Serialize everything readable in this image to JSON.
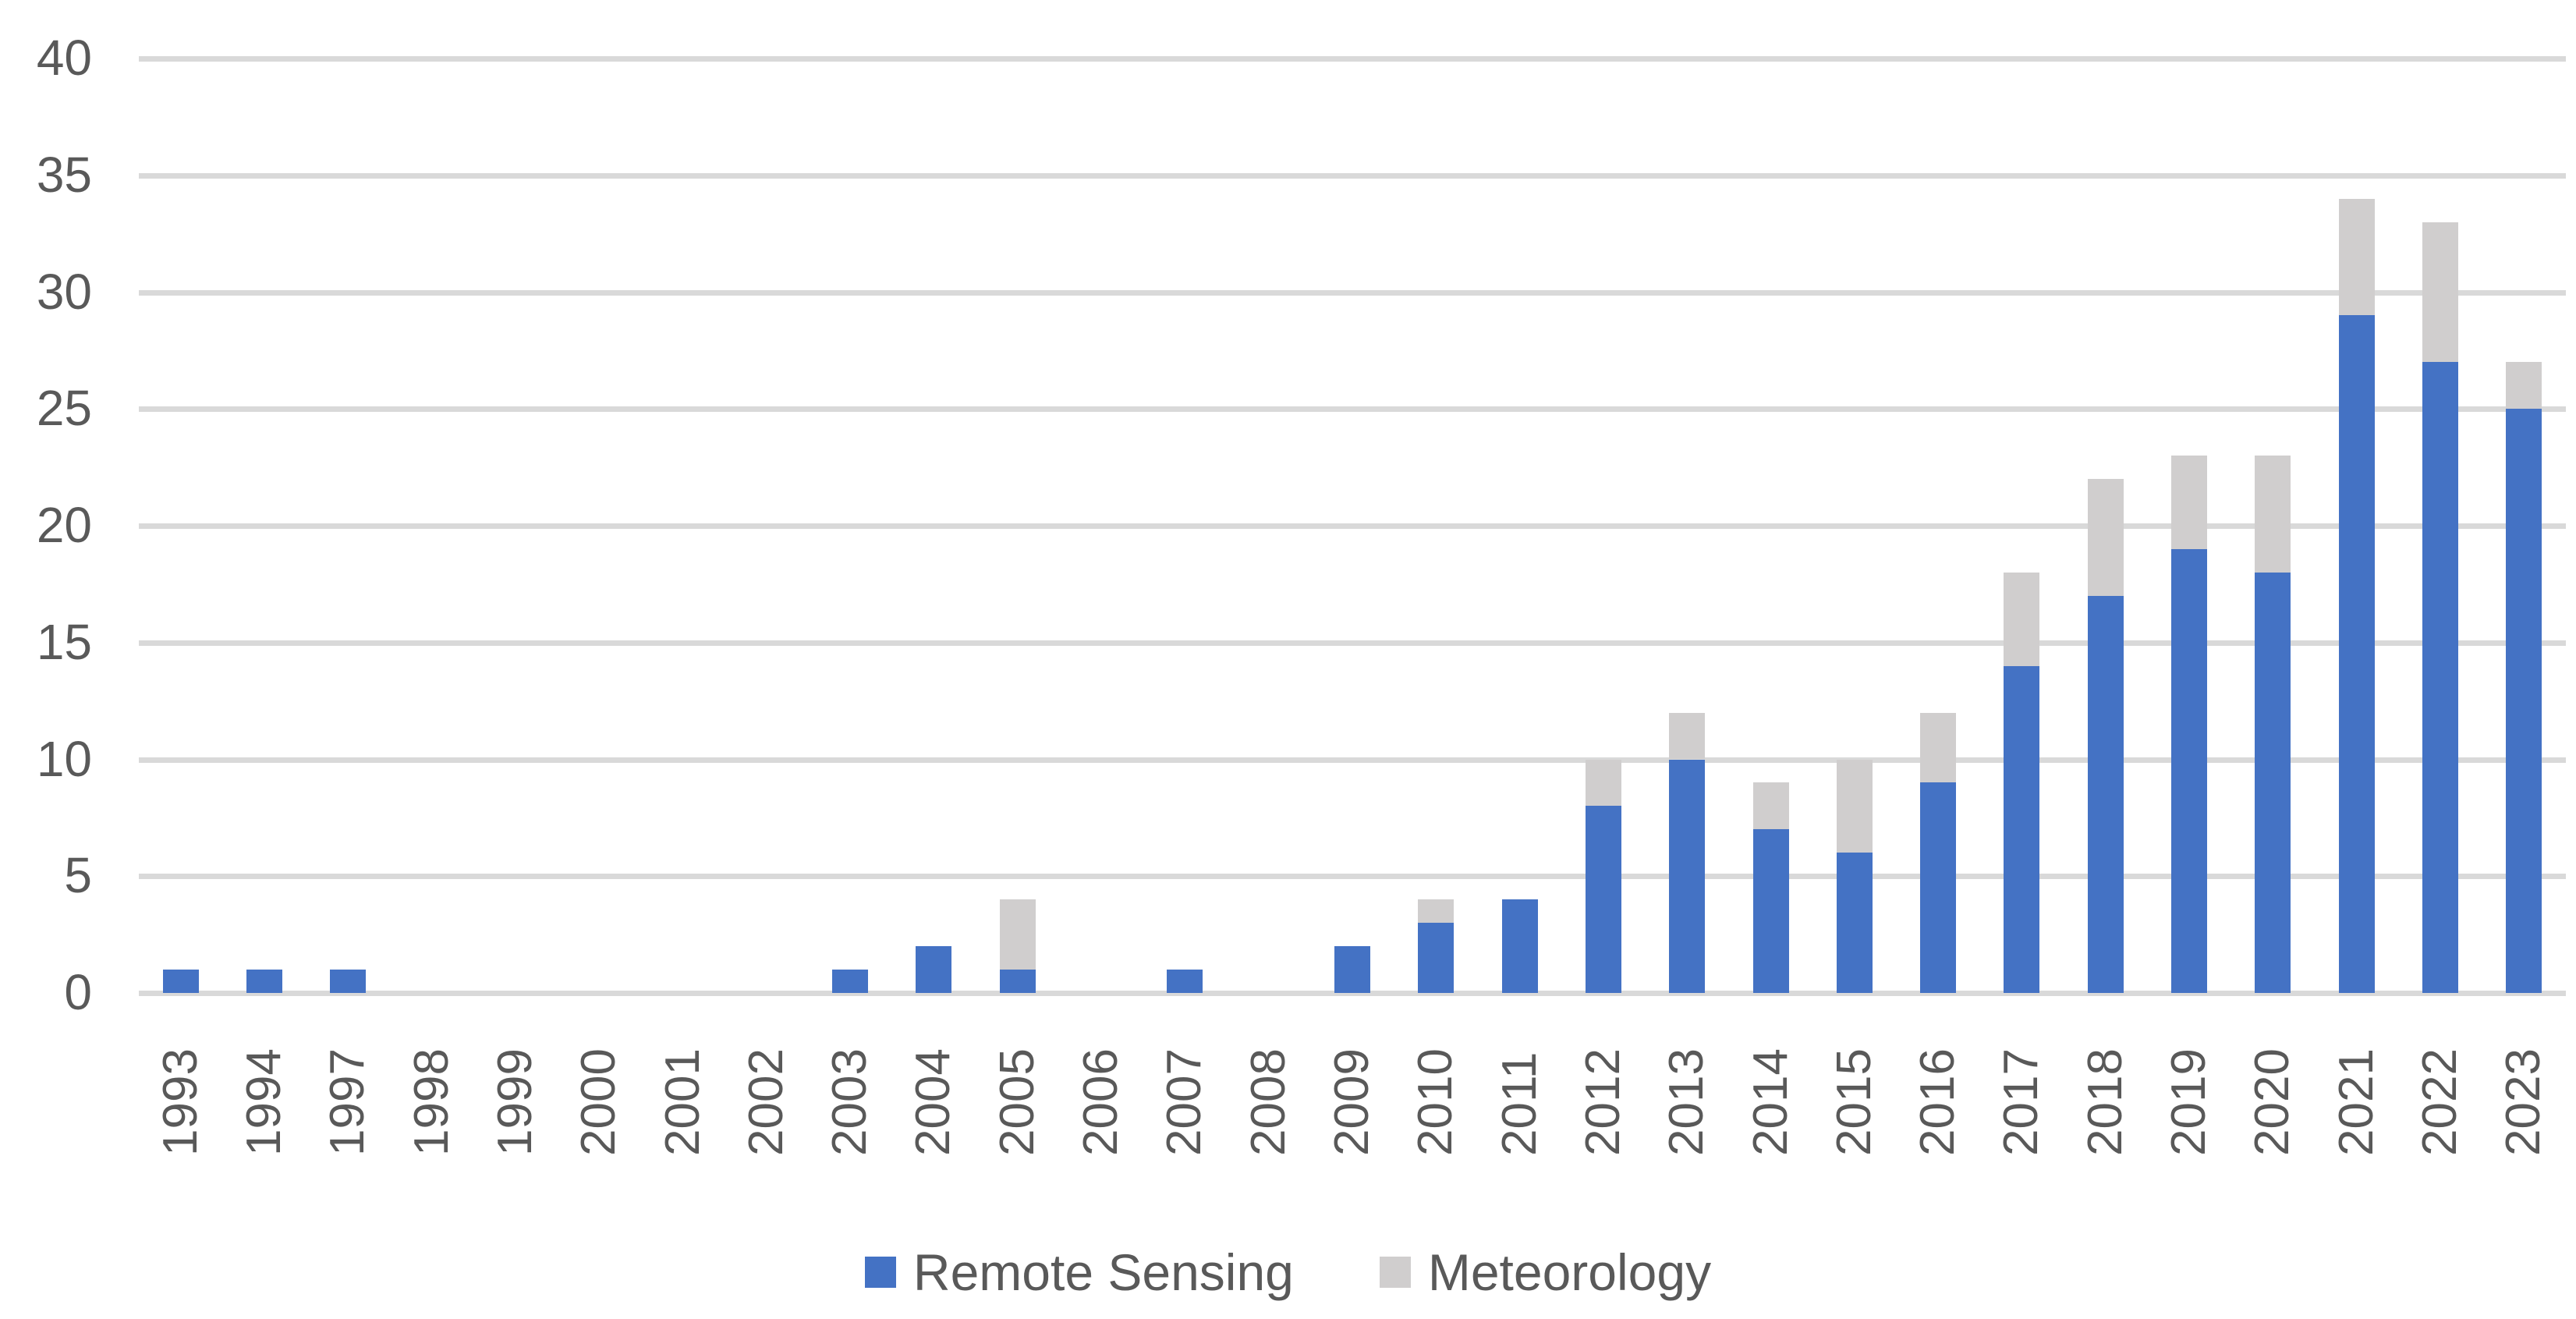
{
  "chart_data": {
    "type": "bar",
    "stacked": true,
    "title": "",
    "xlabel": "",
    "ylabel": "",
    "categories": [
      "1993",
      "1994",
      "1997",
      "1998",
      "1999",
      "2000",
      "2001",
      "2002",
      "2003",
      "2004",
      "2005",
      "2006",
      "2007",
      "2008",
      "2009",
      "2010",
      "2011",
      "2012",
      "2013",
      "2014",
      "2015",
      "2016",
      "2017",
      "2018",
      "2019",
      "2020",
      "2021",
      "2022",
      "2023"
    ],
    "series": [
      {
        "name": "Remote Sensing",
        "color": "#4472C4",
        "values": [
          1,
          1,
          1,
          0,
          0,
          0,
          0,
          0,
          1,
          2,
          1,
          0,
          1,
          0,
          2,
          3,
          4,
          8,
          10,
          7,
          6,
          9,
          14,
          17,
          19,
          18,
          29,
          27,
          25
        ]
      },
      {
        "name": "Meteorology",
        "color": "#D0CECE",
        "values": [
          0,
          0,
          0,
          0,
          0,
          0,
          0,
          0,
          0,
          0,
          3,
          0,
          0,
          0,
          0,
          1,
          0,
          2,
          2,
          2,
          4,
          3,
          4,
          5,
          4,
          5,
          5,
          6,
          2
        ]
      }
    ],
    "totals": [
      1,
      1,
      1,
      0,
      0,
      0,
      0,
      0,
      1,
      2,
      4,
      0,
      1,
      0,
      2,
      4,
      4,
      10,
      12,
      9,
      10,
      12,
      18,
      22,
      23,
      23,
      34,
      33,
      27
    ],
    "ylim": [
      0,
      40
    ],
    "yticks": [
      0,
      5,
      10,
      15,
      20,
      25,
      30,
      35,
      40
    ],
    "grid": true,
    "x_tick_rotation": -90,
    "legend_position": "bottom"
  },
  "colors": {
    "bar_blue": "#4472C4",
    "bar_gray": "#D0CECE",
    "gridline": "#D9D9D9",
    "axis_text": "#595959",
    "background": "#FFFFFF"
  },
  "legend": {
    "items": [
      {
        "label": "Remote Sensing",
        "color": "#4472C4"
      },
      {
        "label": "Meteorology",
        "color": "#D0CECE"
      }
    ]
  }
}
